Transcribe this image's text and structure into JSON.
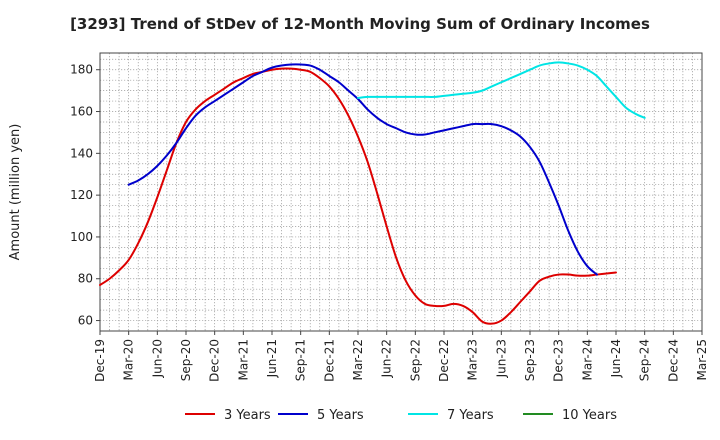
{
  "chart_data": {
    "type": "line",
    "title": "[3293]  Trend of StDev of 12-Month Moving Sum of Ordinary Incomes",
    "ylabel": "Amount (million yen)",
    "xlabel": "",
    "ylim": [
      55,
      188
    ],
    "yticks": [
      60,
      80,
      100,
      120,
      140,
      160,
      180
    ],
    "x_tick_labels": [
      "Dec-19",
      "Mar-20",
      "Jun-20",
      "Sep-20",
      "Dec-20",
      "Mar-21",
      "Jun-21",
      "Sep-21",
      "Dec-21",
      "Mar-22",
      "Jun-22",
      "Sep-22",
      "Dec-22",
      "Mar-23",
      "Jun-23",
      "Sep-23",
      "Dec-23",
      "Mar-24",
      "Jun-24",
      "Sep-24",
      "Dec-24",
      "Mar-25"
    ],
    "grid": true,
    "legend_position": "bottom",
    "series": [
      {
        "name": "3 Years",
        "color": "#dd0000",
        "points": [
          [
            0,
            77
          ],
          [
            1,
            80
          ],
          [
            2,
            84
          ],
          [
            3,
            89
          ],
          [
            4,
            97
          ],
          [
            5,
            107
          ],
          [
            6,
            119
          ],
          [
            7,
            132
          ],
          [
            8,
            145
          ],
          [
            9,
            155
          ],
          [
            10,
            161
          ],
          [
            11,
            165
          ],
          [
            12,
            168
          ],
          [
            13,
            171
          ],
          [
            14,
            174
          ],
          [
            15,
            176
          ],
          [
            16,
            178
          ],
          [
            17,
            179
          ],
          [
            18,
            180
          ],
          [
            19,
            180.5
          ],
          [
            20,
            180.5
          ],
          [
            21,
            180
          ],
          [
            22,
            179
          ],
          [
            23,
            176
          ],
          [
            24,
            172
          ],
          [
            25,
            166
          ],
          [
            26,
            158
          ],
          [
            27,
            148
          ],
          [
            28,
            136
          ],
          [
            29,
            121
          ],
          [
            30,
            105
          ],
          [
            31,
            90
          ],
          [
            32,
            79
          ],
          [
            33,
            72
          ],
          [
            34,
            68
          ],
          [
            35,
            67
          ],
          [
            36,
            67
          ],
          [
            37,
            68
          ],
          [
            38,
            67
          ],
          [
            39,
            64
          ],
          [
            40,
            59.5
          ],
          [
            41,
            58.5
          ],
          [
            42,
            60
          ],
          [
            43,
            64
          ],
          [
            44,
            69
          ],
          [
            45,
            74
          ],
          [
            46,
            79
          ],
          [
            47,
            81
          ],
          [
            48,
            82
          ],
          [
            49,
            82
          ],
          [
            50,
            81.5
          ],
          [
            51,
            81.5
          ],
          [
            52,
            82
          ],
          [
            53,
            82.5
          ],
          [
            54,
            83
          ]
        ]
      },
      {
        "name": "5 Years",
        "color": "#0000cc",
        "points": [
          [
            3,
            125
          ],
          [
            4,
            127
          ],
          [
            5,
            130
          ],
          [
            6,
            134
          ],
          [
            7,
            139
          ],
          [
            8,
            145
          ],
          [
            9,
            152
          ],
          [
            10,
            158
          ],
          [
            11,
            162
          ],
          [
            12,
            165
          ],
          [
            13,
            168
          ],
          [
            14,
            171
          ],
          [
            15,
            174
          ],
          [
            16,
            177
          ],
          [
            17,
            179
          ],
          [
            18,
            181
          ],
          [
            19,
            182
          ],
          [
            20,
            182.5
          ],
          [
            21,
            182.5
          ],
          [
            22,
            182
          ],
          [
            23,
            180
          ],
          [
            24,
            177
          ],
          [
            25,
            174
          ],
          [
            26,
            170
          ],
          [
            27,
            166
          ],
          [
            28,
            161
          ],
          [
            29,
            157
          ],
          [
            30,
            154
          ],
          [
            31,
            152
          ],
          [
            32,
            150
          ],
          [
            33,
            149
          ],
          [
            34,
            149
          ],
          [
            35,
            150
          ],
          [
            36,
            151
          ],
          [
            37,
            152
          ],
          [
            38,
            153
          ],
          [
            39,
            154
          ],
          [
            40,
            154
          ],
          [
            41,
            154
          ],
          [
            42,
            153
          ],
          [
            43,
            151
          ],
          [
            44,
            148
          ],
          [
            45,
            143
          ],
          [
            46,
            136
          ],
          [
            47,
            126
          ],
          [
            48,
            115
          ],
          [
            49,
            103
          ],
          [
            50,
            93
          ],
          [
            51,
            86
          ],
          [
            52,
            82
          ]
        ]
      },
      {
        "name": "7 Years",
        "color": "#00e5e5",
        "points": [
          [
            27,
            166.5
          ],
          [
            28,
            167
          ],
          [
            29,
            167
          ],
          [
            30,
            167
          ],
          [
            31,
            167
          ],
          [
            32,
            167
          ],
          [
            33,
            167
          ],
          [
            34,
            167
          ],
          [
            35,
            167
          ],
          [
            36,
            167.5
          ],
          [
            37,
            168
          ],
          [
            38,
            168.5
          ],
          [
            39,
            169
          ],
          [
            40,
            170
          ],
          [
            41,
            172
          ],
          [
            42,
            174
          ],
          [
            43,
            176
          ],
          [
            44,
            178
          ],
          [
            45,
            180
          ],
          [
            46,
            182
          ],
          [
            47,
            183
          ],
          [
            48,
            183.5
          ],
          [
            49,
            183
          ],
          [
            50,
            182
          ],
          [
            51,
            180
          ],
          [
            52,
            177
          ],
          [
            53,
            172
          ],
          [
            54,
            167
          ],
          [
            55,
            162
          ],
          [
            56,
            159
          ],
          [
            57,
            157
          ]
        ]
      },
      {
        "name": "10 Years",
        "color": "#228b22",
        "points": []
      }
    ]
  }
}
